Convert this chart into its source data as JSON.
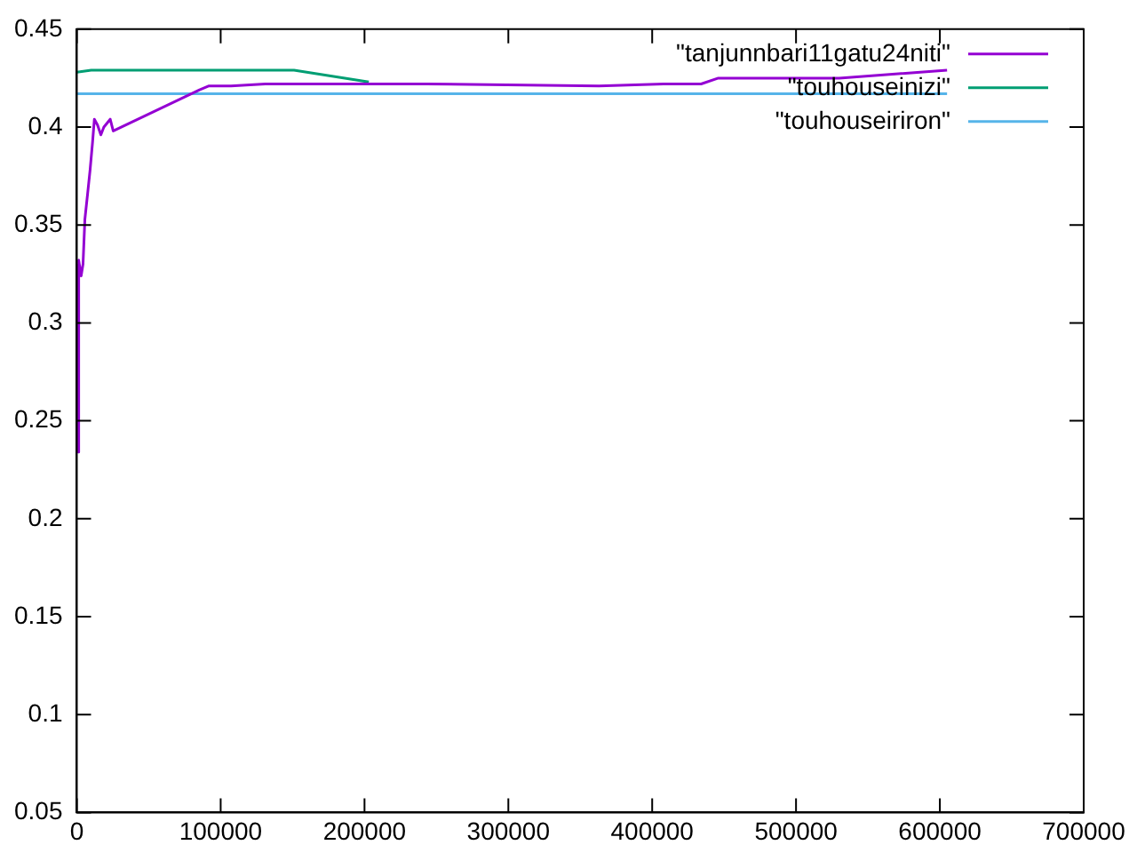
{
  "chart_data": {
    "type": "line",
    "legend": "top right",
    "grid": false,
    "xlim": [
      0,
      700000
    ],
    "ylim": [
      0.05,
      0.45
    ],
    "xticks": [
      0,
      100000,
      200000,
      300000,
      400000,
      500000,
      600000,
      700000
    ],
    "yticks": [
      0.05,
      0.1,
      0.15,
      0.2,
      0.25,
      0.3,
      0.35,
      0.4,
      0.45
    ],
    "series": [
      {
        "name": "\"tanjunnbari11gatu24niti\"",
        "color": "#9400d3",
        "x": [
          0,
          1000,
          1300,
          3000,
          4300,
          5600,
          7500,
          9200,
          10900,
          12200,
          14400,
          16700,
          18800,
          23200,
          25300,
          85300,
          91900,
          107200,
          131000,
          243000,
          363000,
          408000,
          434000,
          446000,
          530000,
          605000
        ],
        "values": [
          0.33,
          0.234,
          0.332,
          0.324,
          0.33,
          0.353,
          0.366,
          0.378,
          0.392,
          0.404,
          0.401,
          0.396,
          0.4,
          0.404,
          0.398,
          0.419,
          0.421,
          0.421,
          0.422,
          0.422,
          0.421,
          0.422,
          0.422,
          0.425,
          0.425,
          0.429
        ]
      },
      {
        "name": "\"touhouseinizi\"",
        "color": "#009e73",
        "x": [
          0,
          10000,
          151000,
          203000
        ],
        "values": [
          0.428,
          0.429,
          0.429,
          0.423
        ]
      },
      {
        "name": "\"touhouseiriron\"",
        "color": "#56b4e9",
        "x": [
          0,
          605000
        ],
        "values": [
          0.417,
          0.417
        ]
      }
    ]
  }
}
